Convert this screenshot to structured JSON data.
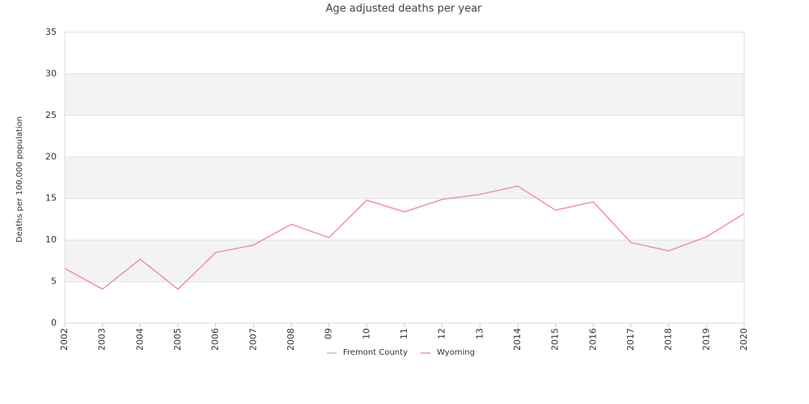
{
  "chart_data": {
    "type": "line",
    "title": "Age adjusted deaths per year",
    "y_label": "Deaths per 100,000 population",
    "categories": [
      "2002",
      "2003",
      "2004",
      "2005",
      "2006",
      "2007",
      "2008",
      "09",
      "10",
      "11",
      "12",
      "13",
      "2014",
      "2015",
      "2016",
      "2017",
      "2018",
      "2019",
      "2020"
    ],
    "series": [
      {
        "name": "Fremont County",
        "color": "#a6c8e8",
        "values": [
          null,
          null,
          null,
          null,
          null,
          null,
          null,
          null,
          null,
          null,
          null,
          null,
          null,
          null,
          null,
          null,
          null,
          null,
          null
        ]
      },
      {
        "name": "Wyoming",
        "color": "#f08cc0",
        "values": [
          6.6,
          4.1,
          7.7,
          4.1,
          8.5,
          9.4,
          11.9,
          10.3,
          14.8,
          13.4,
          14.9,
          15.5,
          16.5,
          13.6,
          14.6,
          9.7,
          8.7,
          10.4,
          13.2
        ]
      }
    ],
    "ylim": [
      0,
      35
    ],
    "yticks": [
      0,
      5,
      10,
      15,
      20,
      25,
      30,
      35
    ],
    "grid": true,
    "legend": "bottom"
  }
}
